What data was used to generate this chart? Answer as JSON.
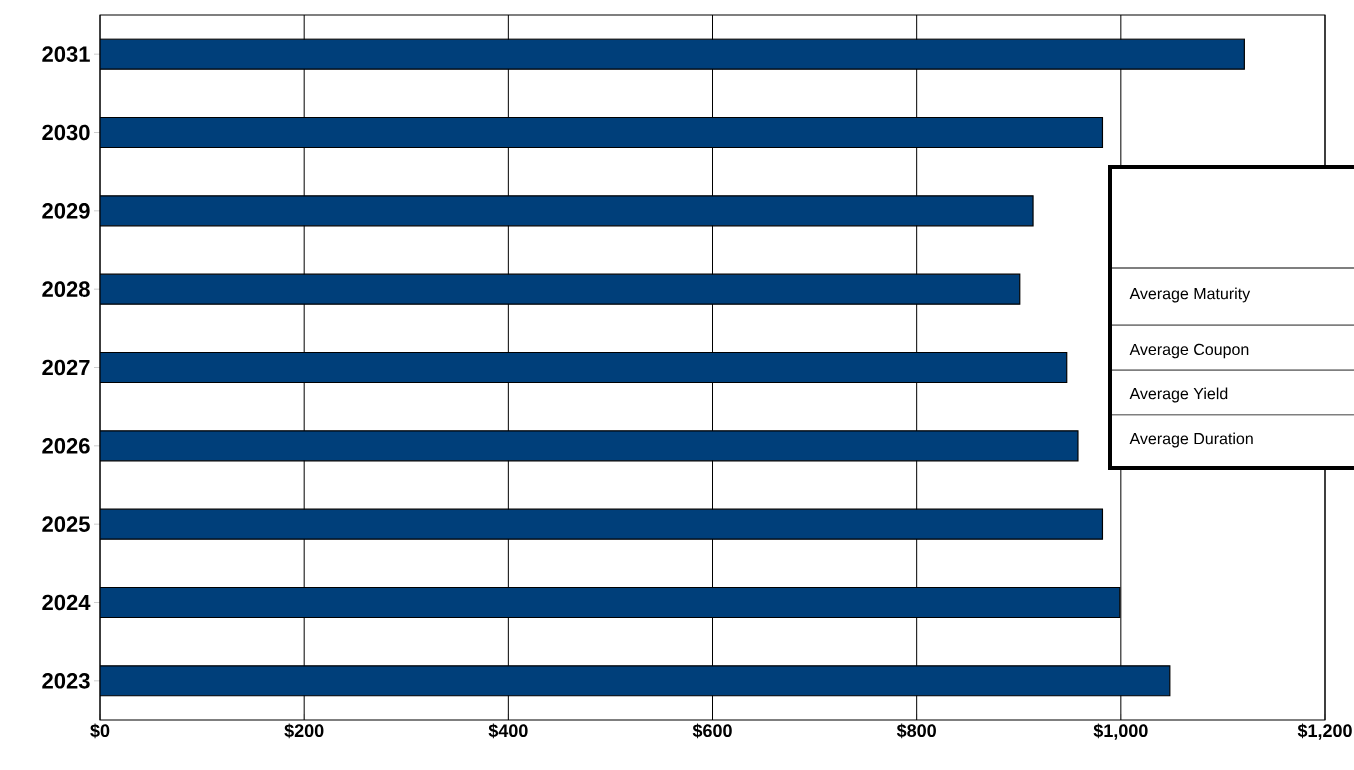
{
  "chart_data": {
    "type": "bar",
    "orientation": "horizontal",
    "categories": [
      "2031",
      "2030",
      "2029",
      "2028",
      "2027",
      "2026",
      "2025",
      "2024",
      "2023"
    ],
    "values": [
      1121,
      982,
      914,
      901,
      947,
      958,
      982,
      999,
      1048
    ],
    "color": "#003f7a",
    "xlim": [
      0,
      1200
    ],
    "xticks": [
      {
        "value": 0,
        "label": "$0"
      },
      {
        "value": 200,
        "label": "$200"
      },
      {
        "value": 400,
        "label": "$400"
      },
      {
        "value": 600,
        "label": "$600"
      },
      {
        "value": 800,
        "label": "$800"
      },
      {
        "value": 1000,
        "label": "$1,000"
      },
      {
        "value": 1200,
        "label": "$1,200"
      }
    ],
    "grid": "x",
    "annotations": [
      "Average Maturity",
      "Average Coupon",
      "Average Yield",
      "Average Duration"
    ]
  }
}
